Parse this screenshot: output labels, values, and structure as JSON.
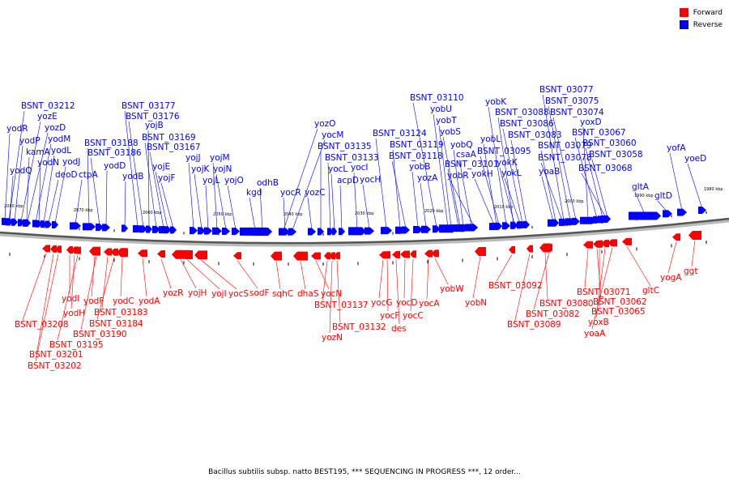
{
  "legend": {
    "forward_label": "Forward",
    "reverse_label": "Reverse",
    "forward_color": "#ff0000",
    "reverse_color": "#0000ff"
  },
  "caption": "Bacillus subtilis subsp. natto BEST195, *** SEQUENCING IN PROGRESS ***, 12 order...",
  "scale_labels": [
    "2080 kbp",
    "2070 kbp",
    "2060 kbp",
    "2050 kbp",
    "2040 kbp",
    "2030 kbp",
    "2020 kbp",
    "2010 kbp",
    "2000 kbp",
    "1990 kbp",
    "1980 kbp"
  ],
  "reverse_genes": [
    "BSNT_03212",
    "yozE",
    "yodR",
    "yozD",
    "yodP",
    "yodM",
    "kamA",
    "yodL",
    "yodQ",
    "yodN",
    "yodJ",
    "deoD",
    "ctpA",
    "BSNT_03177",
    "BSNT_03176",
    "yojB",
    "BSNT_03188",
    "BSNT_03186",
    "BSNT_03169",
    "BSNT_03167",
    "yodD",
    "yodB",
    "yojE",
    "yojF",
    "yojJ",
    "yojK",
    "yojL",
    "yojM",
    "yojN",
    "yojO",
    "kgd",
    "odhB",
    "yozO",
    "yocM",
    "BSNT_03135",
    "BSNT_03133",
    "yocL",
    "yocI",
    "acpD",
    "yocH",
    "yozC",
    "yocR",
    "BSNT_03124",
    "BSNT_03119",
    "BSNT_03118",
    "BSNT_03110",
    "yobU",
    "yobT",
    "yobS",
    "yobQ",
    "csaA",
    "BSNT_03101",
    "yobR",
    "yokH",
    "yozA",
    "yobB",
    "yobK",
    "BSNT_03088",
    "BSNT_03086",
    "BSNT_03083",
    "yobL",
    "BSNT_03095",
    "yokK",
    "yokL",
    "yoaB",
    "BSNT_03077",
    "BSNT_03075",
    "BSNT_03074",
    "yoxD",
    "BSNT_03067",
    "BSNT_03079",
    "BSNT_03078",
    "BSNT_03060",
    "BSNT_03058",
    "BSNT_03068",
    "gltA",
    "gltD",
    "yofA",
    "yoeD"
  ],
  "forward_genes": [
    "yodI",
    "yodH",
    "BSNT_03208",
    "BSNT_03201",
    "BSNT_03202",
    "BSNT_03195",
    "yodF",
    "BSNT_03190",
    "BSNT_03183",
    "BSNT_03184",
    "yodC",
    "yodA",
    "yozR",
    "yojH",
    "yojI",
    "yocS",
    "sodF",
    "sqhC",
    "dhaS",
    "yocN",
    "BSNT_03137",
    "BSNT_03132",
    "yozN",
    "yocG",
    "yocF",
    "des",
    "yocD",
    "yocC",
    "yocA",
    "yobW",
    "yobN",
    "BSNT_03092",
    "BSNT_03080",
    "BSNT_03082",
    "BSNT_03089",
    "BSNT_03071",
    "BSNT_03062",
    "BSNT_03065",
    "yoxB",
    "yoaA",
    "gltC",
    "yogA",
    "ggt"
  ]
}
